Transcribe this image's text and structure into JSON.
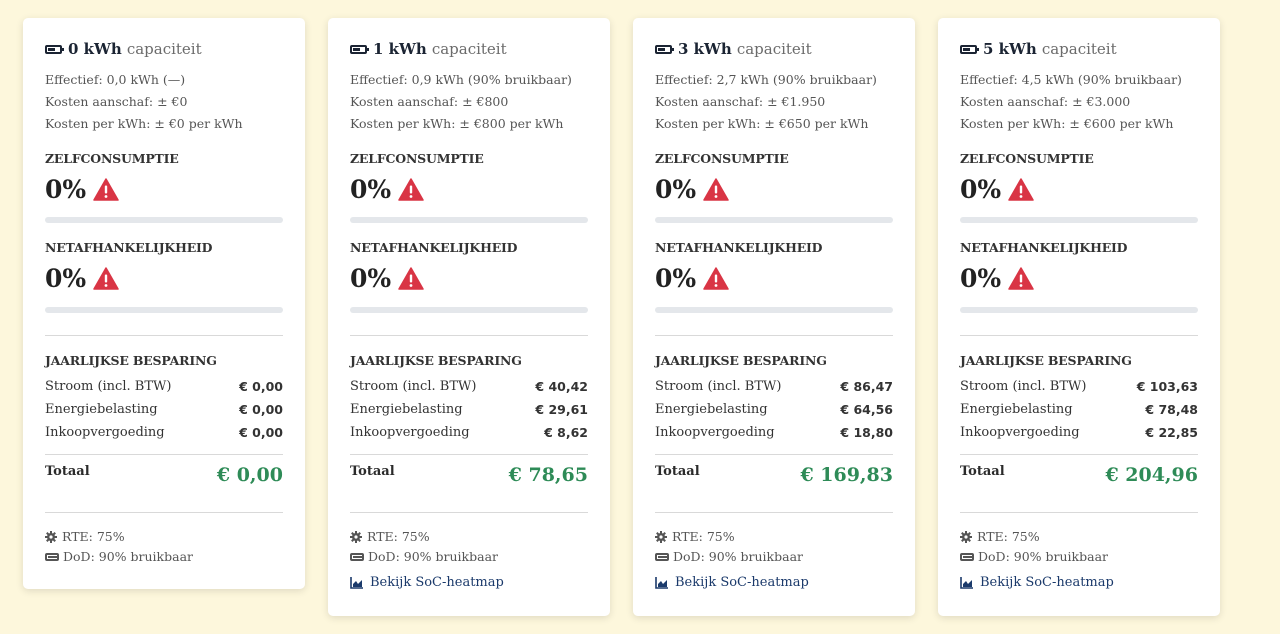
{
  "labels": {
    "capacity_suffix": "capaciteit",
    "zelfconsumptie": "ZELFCONSUMPTIE",
    "netafhankelijkheid": "NETAFHANKELIJKHEID",
    "jaarlijkse_besparing": "JAARLIJKSE BESPARING",
    "stroom": "Stroom (incl. BTW)",
    "energiebelasting": "Energiebelasting",
    "inkoopvergoeding": "Inkoopvergoeding",
    "totaal": "Totaal",
    "rte": "RTE: 75%",
    "dod": "DoD: 90% bruikbaar",
    "heatmap_link": "Bekijk SoC-heatmap"
  },
  "colors": {
    "accent_green": "#2e8b57",
    "warning_red": "#d93545",
    "link_blue": "#1b3a6b"
  },
  "cards": [
    {
      "capacity": "0 kWh",
      "effectief": "Effectief: 0,0 kWh (—)",
      "kosten_aanschaf": "Kosten aanschaf: ± €0",
      "kosten_per_kwh": "Kosten per kWh: ± €0 per kWh",
      "zelfconsumptie": "0%",
      "zelfconsumptie_level": 0,
      "netafhankelijkheid": "0%",
      "netafhankelijkheid_level": 0,
      "stroom": "€ 0,00",
      "energiebelasting": "€ 0,00",
      "inkoopvergoeding": "€ 0,00",
      "totaal": "€ 0,00"
    },
    {
      "capacity": "1 kWh",
      "effectief": "Effectief: 0,9 kWh (90% bruikbaar)",
      "kosten_aanschaf": "Kosten aanschaf: ± €800",
      "kosten_per_kwh": "Kosten per kWh: ± €800 per kWh",
      "zelfconsumptie": "0%",
      "zelfconsumptie_level": 0,
      "netafhankelijkheid": "0%",
      "netafhankelijkheid_level": 0,
      "stroom": "€ 40,42",
      "energiebelasting": "€ 29,61",
      "inkoopvergoeding": "€ 8,62",
      "totaal": "€ 78,65"
    },
    {
      "capacity": "3 kWh",
      "effectief": "Effectief: 2,7 kWh (90% bruikbaar)",
      "kosten_aanschaf": "Kosten aanschaf: ± €1.950",
      "kosten_per_kwh": "Kosten per kWh: ± €650 per kWh",
      "zelfconsumptie": "0%",
      "zelfconsumptie_level": 0,
      "netafhankelijkheid": "0%",
      "netafhankelijkheid_level": 0,
      "stroom": "€ 86,47",
      "energiebelasting": "€ 64,56",
      "inkoopvergoeding": "€ 18,80",
      "totaal": "€ 169,83"
    },
    {
      "capacity": "5 kWh",
      "effectief": "Effectief: 4,5 kWh (90% bruikbaar)",
      "kosten_aanschaf": "Kosten aanschaf: ± €3.000",
      "kosten_per_kwh": "Kosten per kWh: ± €600 per kWh",
      "zelfconsumptie": "0%",
      "zelfconsumptie_level": 0,
      "netafhankelijkheid": "0%",
      "netafhankelijkheid_level": 0,
      "stroom": "€ 103,63",
      "energiebelasting": "€ 78,48",
      "inkoopvergoeding": "€ 22,85",
      "totaal": "€ 204,96"
    }
  ]
}
